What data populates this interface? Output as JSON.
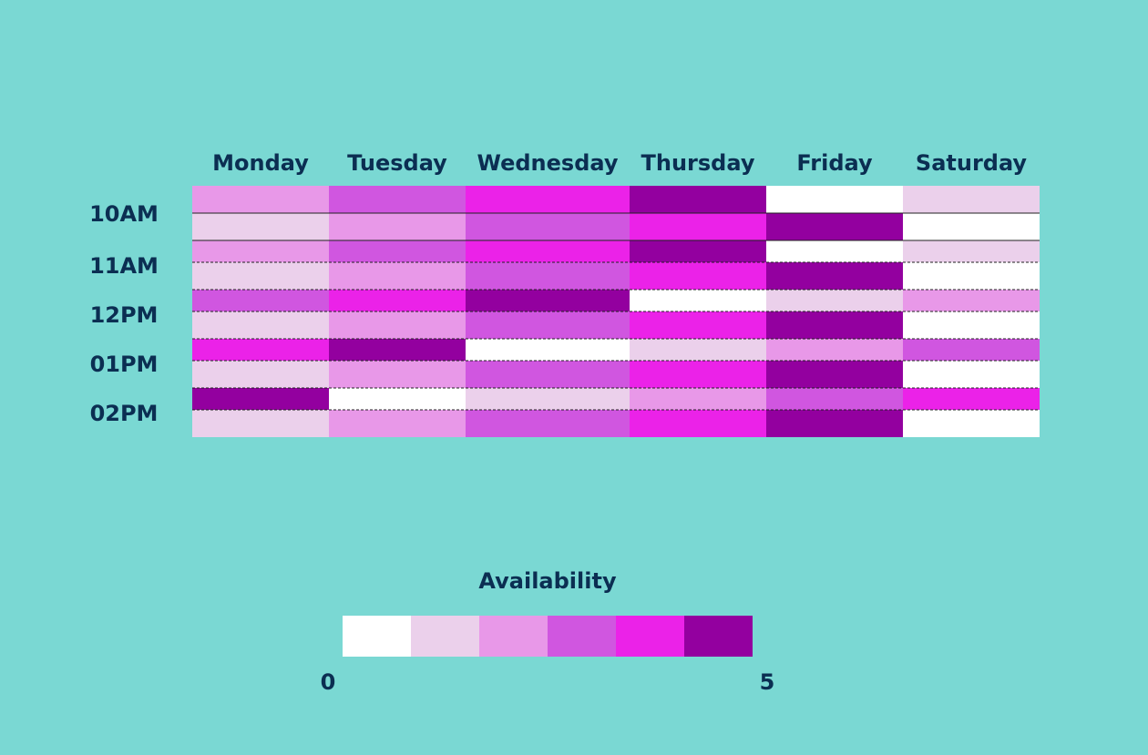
{
  "chart_data": {
    "type": "heatmap",
    "title": "",
    "days": [
      "Monday",
      "Tuesday",
      "Wednesday",
      "Thursday",
      "Friday",
      "Saturday"
    ],
    "time_labels": [
      "10AM",
      "11AM",
      "12PM",
      "01PM",
      "02PM"
    ],
    "rows_per_time": 2,
    "values": [
      [
        2,
        3,
        4,
        5,
        0,
        1
      ],
      [
        1,
        2,
        3,
        4,
        5,
        0
      ],
      [
        2,
        3,
        4,
        5,
        0,
        1
      ],
      [
        1,
        2,
        3,
        4,
        5,
        0
      ],
      [
        3,
        4,
        5,
        0,
        1,
        2
      ],
      [
        1,
        2,
        3,
        4,
        5,
        0
      ],
      [
        4,
        5,
        0,
        1,
        2,
        3
      ],
      [
        1,
        2,
        3,
        4,
        5,
        0
      ],
      [
        5,
        0,
        1,
        2,
        3,
        4
      ],
      [
        1,
        2,
        3,
        4,
        5,
        0
      ]
    ],
    "colorscale": [
      "#ffffff",
      "#ebd0eb",
      "#e898e8",
      "#d056e0",
      "#eb22e8",
      "#93009f"
    ],
    "legend": {
      "title": "Availability",
      "min_label": "0",
      "max_label": "5",
      "position": "bottom-center"
    },
    "background": "#7ad8d3",
    "text_color": "#0b2e52"
  }
}
